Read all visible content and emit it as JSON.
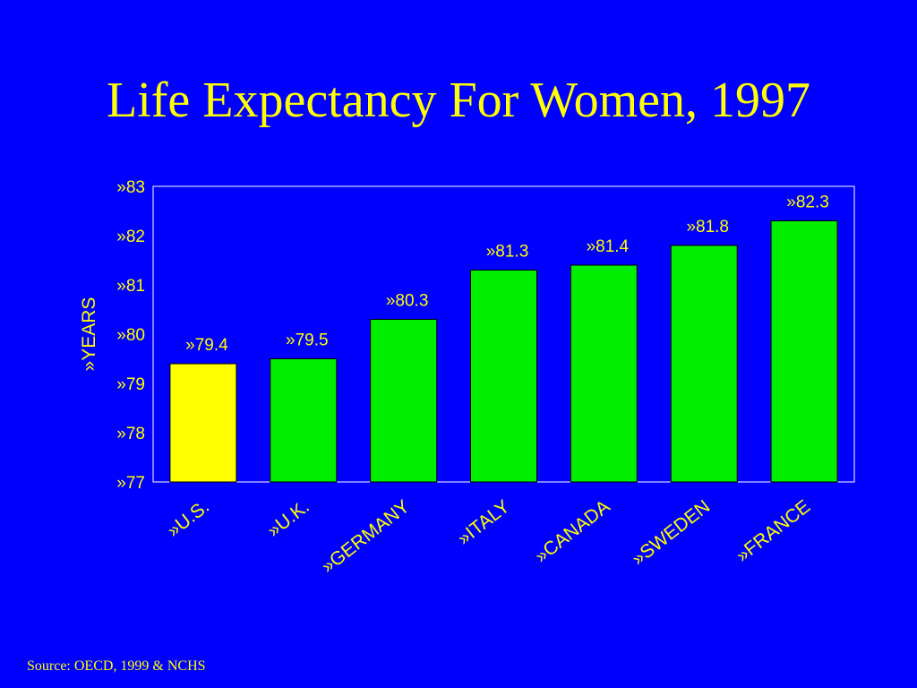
{
  "title": "Life Expectancy For Women, 1997",
  "source": "Source: OECD, 1999 & NCHS",
  "colors": {
    "background": "#0000FF",
    "text": "#FFFF00",
    "highlight_bar": "#FFFF00",
    "bar": "#00EE00"
  },
  "chart_data": {
    "type": "bar",
    "title": "Life Expectancy For Women, 1997",
    "ylabel": "»YEARS",
    "xlabel": "",
    "ylim": [
      77,
      83
    ],
    "yticks": [
      77,
      78,
      79,
      80,
      81,
      82,
      83
    ],
    "ytick_labels": [
      "»77",
      "»78",
      "»79",
      "»80",
      "»81",
      "»82",
      "»83"
    ],
    "categories": [
      "»U.S.",
      "»U.K.",
      "»GERMANY",
      "»ITALY",
      "»CANADA",
      "»SWEDEN",
      "»FRANCE"
    ],
    "values": [
      79.4,
      79.5,
      80.3,
      81.3,
      81.4,
      81.8,
      82.3
    ],
    "value_labels": [
      "»79.4",
      "»79.5",
      "»80.3",
      "»81.3",
      "»81.4",
      "»81.8",
      "»82.3"
    ],
    "highlighted_category": "»U.S.",
    "grid": false,
    "legend": "none"
  }
}
